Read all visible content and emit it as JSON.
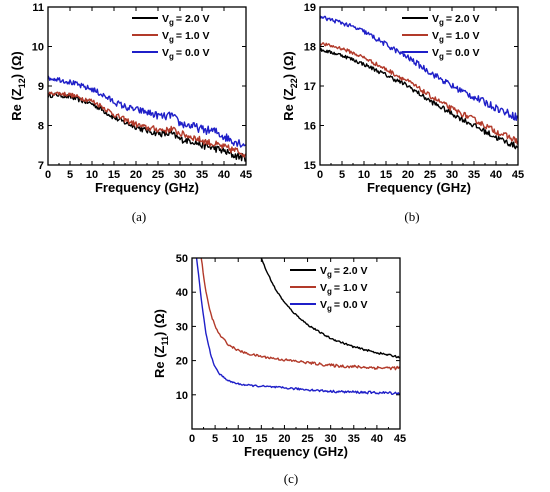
{
  "chart_data": [
    {
      "type": "line",
      "panel_label": "(a)",
      "xlabel": "Frequency (GHz)",
      "ylabel_main": "Re (Z",
      "ylabel_sub": "12",
      "ylabel_unit": ") (Ω)",
      "xlim": [
        0,
        45
      ],
      "ylim": [
        7,
        11
      ],
      "xticks": [
        0,
        5,
        10,
        15,
        20,
        25,
        30,
        35,
        40,
        45
      ],
      "yticks": [
        7,
        8,
        9,
        10,
        11
      ],
      "x": [
        0,
        2,
        5,
        8,
        10,
        12,
        15,
        18,
        20,
        22,
        25,
        27,
        28,
        30,
        33,
        35,
        38,
        40,
        42,
        44,
        45
      ],
      "series": [
        {
          "name": "V_g = 2.0 V",
          "color": "#000000",
          "noise": 0.05,
          "values": [
            8.75,
            8.78,
            8.72,
            8.62,
            8.55,
            8.42,
            8.2,
            8.05,
            7.97,
            7.88,
            7.8,
            7.78,
            7.8,
            7.65,
            7.6,
            7.5,
            7.42,
            7.35,
            7.25,
            7.2,
            7.15
          ]
        },
        {
          "name": "V_g = 1.0 V",
          "color": "#b23a2a",
          "noise": 0.05,
          "values": [
            8.8,
            8.82,
            8.78,
            8.68,
            8.62,
            8.5,
            8.28,
            8.12,
            8.03,
            7.95,
            7.9,
            7.88,
            7.92,
            7.8,
            7.7,
            7.62,
            7.52,
            7.45,
            7.38,
            7.32,
            7.28
          ]
        },
        {
          "name": "V_g = 0.0 V",
          "color": "#1f1fc8",
          "noise": 0.06,
          "values": [
            9.2,
            9.18,
            9.1,
            8.98,
            8.92,
            8.8,
            8.6,
            8.45,
            8.4,
            8.35,
            8.25,
            8.22,
            8.28,
            8.05,
            7.98,
            7.9,
            7.85,
            7.72,
            7.62,
            7.55,
            7.5
          ]
        }
      ],
      "legend": {
        "prefix": "V",
        "sub": "g",
        "labels": [
          "= 2.0 V",
          "= 1.0 V",
          "= 0.0 V"
        ]
      }
    },
    {
      "type": "line",
      "panel_label": "(b)",
      "xlabel": "Frequency (GHz)",
      "ylabel_main": "Re (Z",
      "ylabel_sub": "22",
      "ylabel_unit": ") (Ω)",
      "xlim": [
        0,
        45
      ],
      "ylim": [
        15,
        19
      ],
      "xticks": [
        0,
        5,
        10,
        15,
        20,
        25,
        30,
        35,
        40,
        45
      ],
      "yticks": [
        15,
        16,
        17,
        18,
        19
      ],
      "x": [
        0,
        5,
        10,
        15,
        20,
        25,
        30,
        35,
        40,
        45
      ],
      "series": [
        {
          "name": "V_g = 2.0 V",
          "color": "#000000",
          "noise": 0.04,
          "values": [
            17.92,
            17.78,
            17.55,
            17.28,
            17.0,
            16.62,
            16.3,
            16.0,
            15.7,
            15.45
          ]
        },
        {
          "name": "V_g = 1.0 V",
          "color": "#b23a2a",
          "noise": 0.04,
          "values": [
            18.08,
            17.95,
            17.72,
            17.42,
            17.12,
            16.75,
            16.42,
            16.15,
            15.85,
            15.6
          ]
        },
        {
          "name": "V_g = 0.0 V",
          "color": "#1f1fc8",
          "noise": 0.05,
          "values": [
            18.75,
            18.6,
            18.38,
            18.05,
            17.72,
            17.35,
            17.0,
            16.72,
            16.45,
            16.2
          ]
        }
      ],
      "legend": {
        "prefix": "V",
        "sub": "g",
        "labels": [
          "= 2.0 V",
          "= 1.0 V",
          "= 0.0 V"
        ]
      }
    },
    {
      "type": "line",
      "panel_label": "(c)",
      "xlabel": "Frequency (GHz)",
      "ylabel_main": "Re (Z",
      "ylabel_sub": "11",
      "ylabel_unit": ") (Ω)",
      "xlim": [
        0,
        45
      ],
      "ylim": [
        0,
        50
      ],
      "xticks": [
        0,
        5,
        10,
        15,
        20,
        25,
        30,
        35,
        40,
        45
      ],
      "yticks": [
        10,
        20,
        30,
        40,
        50
      ],
      "x": [
        0.5,
        1,
        2,
        3,
        4,
        5,
        6,
        8,
        10,
        12,
        14,
        15,
        16,
        18,
        20,
        22,
        25,
        28,
        30,
        35,
        40,
        45
      ],
      "series": [
        {
          "name": "V_g = 2.0 V",
          "color": "#000000",
          "noise": 0.15,
          "values": [
            null,
            null,
            null,
            null,
            null,
            null,
            null,
            null,
            null,
            null,
            null,
            50,
            46.5,
            41,
            37,
            34,
            30.5,
            28,
            26.5,
            24,
            22.3,
            21
          ]
        },
        {
          "name": "V_g = 1.0 V",
          "color": "#b23a2a",
          "noise": 0.25,
          "values": [
            null,
            null,
            50,
            40,
            34,
            30,
            27.5,
            24.5,
            23,
            22,
            21.5,
            21.2,
            21,
            20.6,
            20.2,
            19.9,
            19.4,
            18.9,
            18.6,
            18.2,
            17.9,
            17.8
          ]
        },
        {
          "name": "V_g = 0.0 V",
          "color": "#1f1fc8",
          "noise": 0.2,
          "values": [
            null,
            50,
            38,
            28,
            22,
            18,
            16,
            14,
            13.2,
            12.8,
            12.6,
            12.5,
            12.4,
            12.2,
            12,
            11.8,
            11.5,
            11.2,
            11,
            10.8,
            10.6,
            10.5
          ]
        }
      ],
      "legend": {
        "prefix": "V",
        "sub": "g",
        "labels": [
          "= 2.0 V",
          "= 1.0 V",
          "= 0.0 V"
        ]
      }
    }
  ]
}
